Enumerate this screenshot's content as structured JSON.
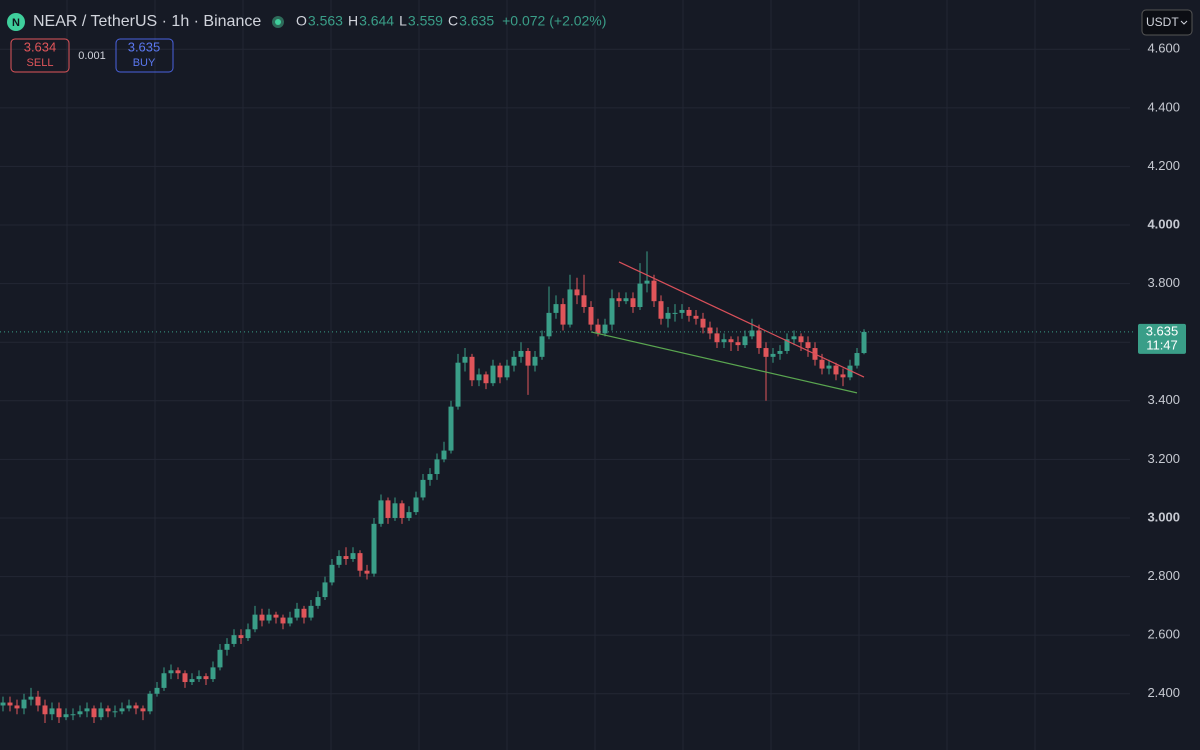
{
  "header": {
    "symbol": "NEAR / TetherUS · 1h · Binance",
    "ohlc": [
      {
        "label": "O",
        "value": 3.563
      },
      {
        "label": "H",
        "value": 3.644
      },
      {
        "label": "L",
        "value": 3.559
      },
      {
        "label": "C",
        "value": 3.635
      }
    ],
    "change": "+0.072 (+2.02%)"
  },
  "trade": {
    "sell": {
      "price": 3.634,
      "label": "SELL"
    },
    "spread": 0.001,
    "buy": {
      "price": 3.635,
      "label": "BUY"
    }
  },
  "currency": "USDT",
  "last_price": {
    "value": 3.635,
    "countdown": "11:47"
  },
  "chart_data": {
    "type": "candlestick",
    "colors": {
      "up": "#3a9e88",
      "down": "#e0555a"
    },
    "grid": true,
    "ylim": [
      2.208,
      4.768
    ],
    "yticks": [
      {
        "value": 2.4,
        "label": "2.400"
      },
      {
        "value": 2.6,
        "label": "2.600"
      },
      {
        "value": 2.8,
        "label": "2.800"
      },
      {
        "value": 3.0,
        "label": "3.000"
      },
      {
        "value": 3.2,
        "label": "3.200"
      },
      {
        "value": 3.4,
        "label": "3.400"
      },
      {
        "value": 3.6,
        "label": "3.600"
      },
      {
        "value": 3.8,
        "label": "3.800"
      },
      {
        "value": 4.0,
        "label": "4.000"
      },
      {
        "value": 4.2,
        "label": "4.200"
      },
      {
        "value": 4.4,
        "label": "4.400"
      },
      {
        "value": 4.6,
        "label": "4.600"
      }
    ],
    "open": [
      2.36,
      2.37,
      2.36,
      2.35,
      2.38,
      2.39,
      2.36,
      2.33,
      2.35,
      2.32,
      2.33,
      2.33,
      2.34,
      2.35,
      2.32,
      2.35,
      2.34,
      2.34,
      2.35,
      2.36,
      2.35,
      2.34,
      2.4,
      2.42,
      2.47,
      2.48,
      2.47,
      2.44,
      2.45,
      2.46,
      2.45,
      2.49,
      2.55,
      2.57,
      2.6,
      2.59,
      2.62,
      2.67,
      2.65,
      2.67,
      2.66,
      2.64,
      2.66,
      2.69,
      2.66,
      2.7,
      2.73,
      2.78,
      2.84,
      2.87,
      2.86,
      2.88,
      2.82,
      2.81,
      2.98,
      3.06,
      3.0,
      3.05,
      3.0,
      3.02,
      3.07,
      3.13,
      3.15,
      3.2,
      3.23,
      3.38,
      3.53,
      3.55,
      3.47,
      3.49,
      3.46,
      3.52,
      3.48,
      3.52,
      3.55,
      3.57,
      3.52,
      3.55,
      3.62,
      3.7,
      3.73,
      3.66,
      3.78,
      3.76,
      3.72,
      3.66,
      3.63,
      3.66,
      3.75,
      3.74,
      3.75,
      3.72,
      3.8,
      3.81,
      3.74,
      3.68,
      3.7,
      3.7,
      3.71,
      3.69,
      3.68,
      3.65,
      3.63,
      3.6,
      3.61,
      3.6,
      3.59,
      3.62,
      3.64,
      3.58,
      3.55,
      3.56,
      3.57,
      3.61,
      3.62,
      3.6,
      3.58,
      3.54,
      3.51,
      3.52,
      3.49,
      3.48,
      3.52,
      3.563
    ],
    "high": [
      2.39,
      2.39,
      2.38,
      2.4,
      2.42,
      2.41,
      2.38,
      2.37,
      2.37,
      2.35,
      2.35,
      2.36,
      2.37,
      2.36,
      2.37,
      2.36,
      2.36,
      2.37,
      2.38,
      2.37,
      2.36,
      2.41,
      2.44,
      2.49,
      2.5,
      2.49,
      2.48,
      2.47,
      2.48,
      2.47,
      2.51,
      2.57,
      2.59,
      2.62,
      2.62,
      2.64,
      2.7,
      2.69,
      2.69,
      2.68,
      2.67,
      2.68,
      2.71,
      2.7,
      2.72,
      2.75,
      2.8,
      2.86,
      2.89,
      2.9,
      2.9,
      2.89,
      2.84,
      3.0,
      3.08,
      3.07,
      3.07,
      3.06,
      3.04,
      3.09,
      3.15,
      3.17,
      3.22,
      3.26,
      3.4,
      3.56,
      3.58,
      3.56,
      3.51,
      3.5,
      3.54,
      3.53,
      3.54,
      3.57,
      3.6,
      3.58,
      3.57,
      3.64,
      3.79,
      3.76,
      3.75,
      3.83,
      3.82,
      3.83,
      3.74,
      3.68,
      3.68,
      3.78,
      3.77,
      3.77,
      3.77,
      3.87,
      3.91,
      3.83,
      3.76,
      3.72,
      3.73,
      3.73,
      3.72,
      3.71,
      3.7,
      3.67,
      3.65,
      3.63,
      3.62,
      3.62,
      3.64,
      3.68,
      3.66,
      3.6,
      3.58,
      3.59,
      3.63,
      3.64,
      3.63,
      3.62,
      3.6,
      3.56,
      3.54,
      3.53,
      3.51,
      3.54,
      3.58,
      3.644
    ],
    "low": [
      2.34,
      2.34,
      2.33,
      2.33,
      2.36,
      2.34,
      2.3,
      2.31,
      2.3,
      2.31,
      2.31,
      2.32,
      2.32,
      2.3,
      2.31,
      2.32,
      2.32,
      2.33,
      2.34,
      2.33,
      2.31,
      2.33,
      2.39,
      2.41,
      2.45,
      2.45,
      2.42,
      2.43,
      2.44,
      2.43,
      2.44,
      2.48,
      2.53,
      2.56,
      2.57,
      2.58,
      2.61,
      2.63,
      2.64,
      2.64,
      2.62,
      2.63,
      2.65,
      2.64,
      2.65,
      2.69,
      2.72,
      2.77,
      2.83,
      2.84,
      2.85,
      2.8,
      2.79,
      2.8,
      2.97,
      2.98,
      2.99,
      2.98,
      2.99,
      3.01,
      3.06,
      3.11,
      3.13,
      3.19,
      3.22,
      3.37,
      3.5,
      3.45,
      3.45,
      3.44,
      3.45,
      3.46,
      3.47,
      3.5,
      3.53,
      3.42,
      3.5,
      3.54,
      3.61,
      3.68,
      3.64,
      3.65,
      3.73,
      3.7,
      3.64,
      3.62,
      3.62,
      3.64,
      3.72,
      3.73,
      3.7,
      3.71,
      3.77,
      3.72,
      3.66,
      3.65,
      3.67,
      3.68,
      3.67,
      3.66,
      3.63,
      3.61,
      3.58,
      3.58,
      3.57,
      3.57,
      3.58,
      3.61,
      3.56,
      3.4,
      3.53,
      3.54,
      3.56,
      3.59,
      3.57,
      3.55,
      3.52,
      3.49,
      3.49,
      3.47,
      3.45,
      3.47,
      3.51,
      3.559
    ],
    "close": [
      2.37,
      2.36,
      2.35,
      2.38,
      2.39,
      2.36,
      2.33,
      2.35,
      2.32,
      2.33,
      2.33,
      2.34,
      2.35,
      2.32,
      2.35,
      2.34,
      2.34,
      2.35,
      2.36,
      2.35,
      2.34,
      2.4,
      2.42,
      2.47,
      2.48,
      2.47,
      2.44,
      2.45,
      2.46,
      2.45,
      2.49,
      2.55,
      2.57,
      2.6,
      2.59,
      2.62,
      2.67,
      2.65,
      2.67,
      2.66,
      2.64,
      2.66,
      2.69,
      2.66,
      2.7,
      2.73,
      2.78,
      2.84,
      2.87,
      2.86,
      2.88,
      2.82,
      2.81,
      2.98,
      3.06,
      3.0,
      3.05,
      3.0,
      3.02,
      3.07,
      3.13,
      3.15,
      3.2,
      3.23,
      3.38,
      3.53,
      3.55,
      3.47,
      3.49,
      3.46,
      3.52,
      3.48,
      3.52,
      3.55,
      3.57,
      3.52,
      3.55,
      3.62,
      3.7,
      3.73,
      3.66,
      3.78,
      3.76,
      3.72,
      3.66,
      3.63,
      3.66,
      3.75,
      3.74,
      3.75,
      3.72,
      3.8,
      3.81,
      3.74,
      3.68,
      3.7,
      3.7,
      3.71,
      3.69,
      3.68,
      3.65,
      3.63,
      3.6,
      3.61,
      3.6,
      3.59,
      3.62,
      3.64,
      3.58,
      3.55,
      3.56,
      3.57,
      3.61,
      3.62,
      3.6,
      3.58,
      3.54,
      3.51,
      3.52,
      3.49,
      3.48,
      3.52,
      3.563,
      3.635
    ],
    "trendlines": [
      {
        "color": "#d9505a",
        "x": [
          88,
          123
        ],
        "y": [
          3.874,
          3.481
        ]
      },
      {
        "color": "#5aa650",
        "x": [
          84,
          122
        ],
        "y": [
          3.635,
          3.427
        ]
      }
    ]
  }
}
